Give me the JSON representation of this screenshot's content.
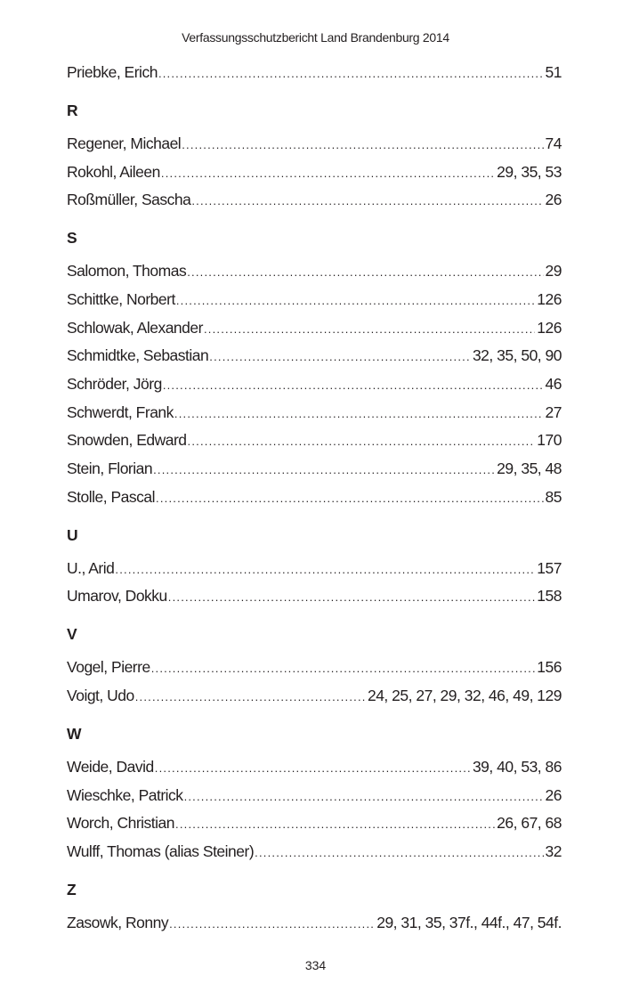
{
  "header": {
    "title": "Verfassungsschutzbericht Land Brandenburg 2014"
  },
  "sections": [
    {
      "letter": "",
      "entries": [
        {
          "name": "Priebke, Erich",
          "pages": "51"
        }
      ]
    },
    {
      "letter": "R",
      "entries": [
        {
          "name": "Regener, Michael",
          "pages": "74"
        },
        {
          "name": "Rokohl, Aileen",
          "pages": "29, 35, 53"
        },
        {
          "name": "Roßmüller, Sascha",
          "pages": "26"
        }
      ]
    },
    {
      "letter": "S",
      "entries": [
        {
          "name": "Salomon, Thomas",
          "pages": "29"
        },
        {
          "name": "Schittke, Norbert",
          "pages": "126"
        },
        {
          "name": "Schlowak, Alexander",
          "pages": "126"
        },
        {
          "name": "Schmidtke, Sebastian",
          "pages": "32, 35, 50, 90"
        },
        {
          "name": "Schröder, Jörg",
          "pages": "46"
        },
        {
          "name": "Schwerdt, Frank",
          "pages": "27"
        },
        {
          "name": "Snowden, Edward",
          "pages": "170"
        },
        {
          "name": "Stein, Florian",
          "pages": "29, 35, 48"
        },
        {
          "name": "Stolle, Pascal",
          "pages": "85"
        }
      ]
    },
    {
      "letter": "U",
      "entries": [
        {
          "name": "U., Arid",
          "pages": "157"
        },
        {
          "name": "Umarov, Dokku",
          "pages": "158"
        }
      ]
    },
    {
      "letter": "V",
      "entries": [
        {
          "name": "Vogel, Pierre",
          "pages": "156"
        },
        {
          "name": "Voigt, Udo",
          "pages": "24, 25, 27, 29, 32, 46, 49, 129"
        }
      ]
    },
    {
      "letter": "W",
      "entries": [
        {
          "name": "Weide, David",
          "pages": "39, 40, 53, 86"
        },
        {
          "name": "Wieschke, Patrick",
          "pages": "26"
        },
        {
          "name": "Worch, Christian",
          "pages": "26, 67, 68"
        },
        {
          "name": "Wulff, Thomas (alias Steiner)",
          "pages": "32"
        }
      ]
    },
    {
      "letter": "Z",
      "entries": [
        {
          "name": "Zasowk, Ronny",
          "pages": "29, 31, 35, 37f., 44f., 47, 54f."
        }
      ]
    }
  ],
  "footer": {
    "page_number": "334"
  }
}
